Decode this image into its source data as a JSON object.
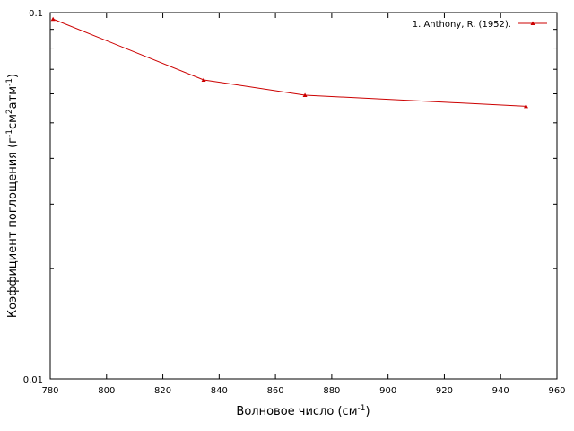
{
  "chart_data": {
    "type": "line",
    "xlabel": {
      "text": "Волновое число (см",
      "sup": "-1",
      "tail": ")"
    },
    "ylabel": {
      "p1": "Коэффициент поглощения (г",
      "s1": "-1",
      "p2": "см",
      "s2": "2",
      "p3": "атм",
      "s3": "-1",
      "p4": ")"
    },
    "xlim": [
      780,
      960
    ],
    "ylim": [
      0.01,
      0.1
    ],
    "yscale": "log",
    "x_ticks": [
      780,
      800,
      820,
      840,
      860,
      880,
      900,
      920,
      940,
      960
    ],
    "x_tick_labels": [
      "780",
      "800",
      "820",
      "840",
      "860",
      "880",
      "900",
      "920",
      "940",
      "960"
    ],
    "y_ticks": [
      0.01,
      0.1
    ],
    "y_tick_labels": [
      "0.01",
      "0.1"
    ],
    "grid": false,
    "legend_position": "top-right",
    "series": [
      {
        "name": "1. Anthony, R. (1952).",
        "color": "#cc0000",
        "marker": "triangle",
        "x": [
          781,
          834.5,
          870.5,
          949
        ],
        "y": [
          0.096,
          0.0655,
          0.0595,
          0.0555
        ]
      }
    ]
  }
}
